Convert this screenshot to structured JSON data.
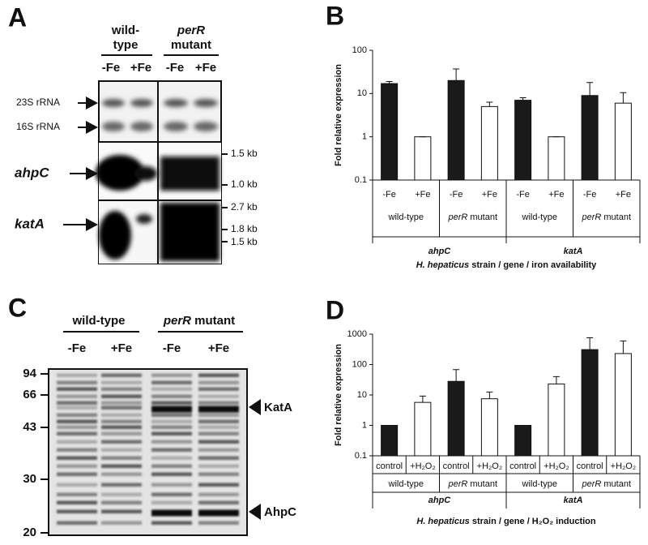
{
  "panel_labels": [
    "A",
    "B",
    "C",
    "D"
  ],
  "panel_a": {
    "groups": [
      [
        "wild-",
        "type"
      ],
      [
        "perR",
        "mutant"
      ]
    ],
    "lanes": [
      "-Fe",
      "+Fe",
      "-Fe",
      "+Fe"
    ],
    "rows": [
      "23S rRNA",
      "16S rRNA",
      "ahpC",
      "katA"
    ],
    "size_markers": [
      "1.5 kb",
      "1.0 kb",
      "2.7 kb",
      "1.8 kb",
      "1.5 kb"
    ]
  },
  "panel_c": {
    "groups": [
      "wild-type",
      "perR mutant"
    ],
    "lanes": [
      "-Fe",
      "+Fe",
      "-Fe",
      "+Fe"
    ],
    "mw_markers": [
      94,
      66,
      43,
      30,
      20
    ],
    "bands": [
      "KatA",
      "AhpC"
    ]
  },
  "chart_data": [
    {
      "type": "bar",
      "y_label": "Fold relative expression",
      "log_scale": true,
      "ylim": [
        0.1,
        100
      ],
      "yticks": [
        0.1,
        1,
        10,
        100
      ],
      "categories": [
        "-Fe",
        "+Fe",
        "-Fe",
        "+Fe",
        "-Fe",
        "+Fe",
        "-Fe",
        "+Fe"
      ],
      "values": [
        17,
        1,
        20,
        5,
        7,
        1,
        9,
        6
      ],
      "errors": [
        2,
        0,
        17,
        1.3,
        1,
        0,
        9,
        4.5
      ],
      "colors": [
        "#1a1a1a",
        "#ffffff",
        "#1a1a1a",
        "#ffffff",
        "#1a1a1a",
        "#ffffff",
        "#1a1a1a",
        "#ffffff"
      ],
      "groups": [
        "wild-type",
        "perR mutant",
        "wild-type",
        "perR mutant"
      ],
      "genes": [
        "ahpC",
        "katA"
      ],
      "x_title": "H. hepaticus strain / gene / iron availability"
    },
    {
      "type": "bar",
      "y_label": "Fold relative expression",
      "log_scale": true,
      "ylim": [
        0.1,
        1000
      ],
      "yticks": [
        0.1,
        1,
        10,
        100,
        1000
      ],
      "categories": [
        "control",
        "+H₂O₂",
        "control",
        "+H₂O₂",
        "control",
        "+H₂O₂",
        "control",
        "+H₂O₂"
      ],
      "values": [
        1,
        5.7,
        28,
        7.5,
        1,
        23,
        310,
        230
      ],
      "errors": [
        0,
        3.5,
        40,
        5,
        0,
        17,
        450,
        370
      ],
      "colors": [
        "#1a1a1a",
        "#ffffff",
        "#1a1a1a",
        "#ffffff",
        "#1a1a1a",
        "#ffffff",
        "#1a1a1a",
        "#ffffff"
      ],
      "groups": [
        "wild-type",
        "perR mutant",
        "wild-type",
        "perR mutant"
      ],
      "genes": [
        "ahpC",
        "katA"
      ],
      "x_title": "H. hepaticus strain / gene / H₂O₂ induction"
    }
  ]
}
